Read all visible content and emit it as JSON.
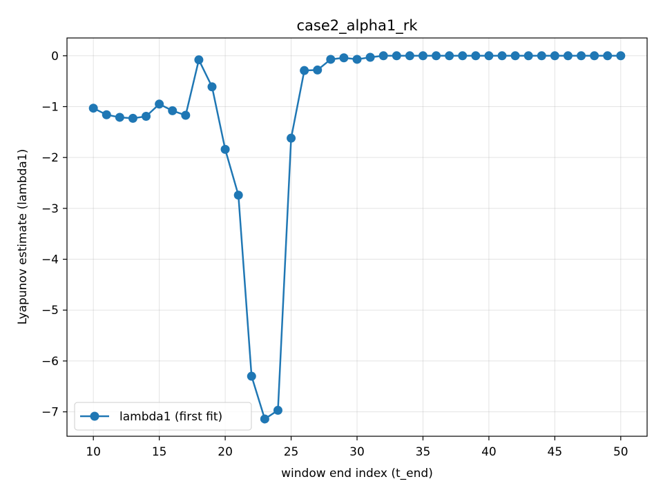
{
  "chart_data": {
    "type": "line",
    "title": "case2_alpha1_rk",
    "xlabel": "window end index (t_end)",
    "ylabel": "Lyapunov estimate (lambda1)",
    "xlim": [
      8,
      52
    ],
    "ylim": [
      -7.48,
      0.35
    ],
    "xticks": [
      10,
      15,
      20,
      25,
      30,
      35,
      40,
      45,
      50
    ],
    "yticks": [
      0,
      -1,
      -2,
      -3,
      -4,
      -5,
      -6,
      -7
    ],
    "xtick_labels": [
      "10",
      "15",
      "20",
      "25",
      "30",
      "35",
      "40",
      "45",
      "50"
    ],
    "ytick_labels": [
      "0",
      "−1",
      "−2",
      "−3",
      "−4",
      "−5",
      "−6",
      "−7"
    ],
    "grid": true,
    "legend": {
      "position": "lower-left",
      "entries": [
        "lambda1 (first fit)"
      ]
    },
    "series": [
      {
        "name": "lambda1 (first fit)",
        "color": "#1f77b4",
        "marker": "circle",
        "x": [
          10,
          11,
          12,
          13,
          14,
          15,
          16,
          17,
          18,
          19,
          20,
          21,
          22,
          23,
          24,
          25,
          26,
          27,
          28,
          29,
          30,
          31,
          32,
          33,
          34,
          35,
          36,
          37,
          38,
          39,
          40,
          41,
          42,
          43,
          44,
          45,
          46,
          47,
          48,
          49,
          50
        ],
        "y": [
          -1.03,
          -1.16,
          -1.21,
          -1.23,
          -1.19,
          -0.95,
          -1.08,
          -1.17,
          -0.08,
          -0.61,
          -1.84,
          -2.74,
          -6.3,
          -7.14,
          -6.97,
          -1.62,
          -0.29,
          -0.28,
          -0.07,
          -0.04,
          -0.07,
          -0.03,
          0.0,
          0.0,
          0.0,
          0.0,
          0.0,
          0.0,
          0.0,
          0.0,
          0.0,
          0.0,
          0.0,
          0.0,
          0.0,
          0.0,
          0.0,
          0.0,
          0.0,
          0.0,
          0.0
        ]
      }
    ]
  }
}
